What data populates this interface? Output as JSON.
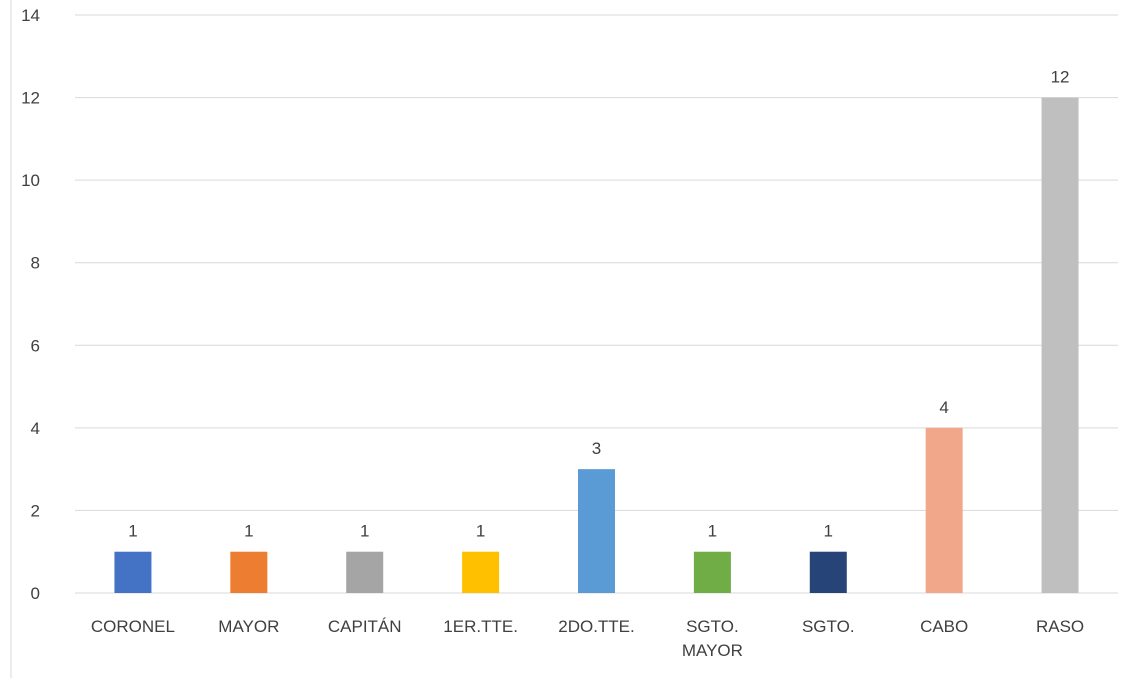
{
  "chart_data": {
    "type": "bar",
    "categories": [
      [
        "CORONEL"
      ],
      [
        "MAYOR"
      ],
      [
        "CAPITÁN"
      ],
      [
        "1ER.TTE."
      ],
      [
        "2DO.TTE."
      ],
      [
        "SGTO.",
        "MAYOR"
      ],
      [
        "SGTO."
      ],
      [
        "CABO"
      ],
      [
        "RASO"
      ]
    ],
    "values": [
      1,
      1,
      1,
      1,
      3,
      1,
      1,
      4,
      12
    ],
    "bar_colors": [
      "#4472C4",
      "#ED7D31",
      "#A5A5A5",
      "#FFC000",
      "#5B9BD5",
      "#70AD47",
      "#264478",
      "#F1A78A",
      "#BFBFBF"
    ],
    "ylim": [
      0,
      14
    ],
    "yticks": [
      0,
      2,
      4,
      6,
      8,
      10,
      12,
      14
    ],
    "grid": true,
    "gridline_color": "#D9D9D9",
    "data_labels": true,
    "legend": "none"
  }
}
